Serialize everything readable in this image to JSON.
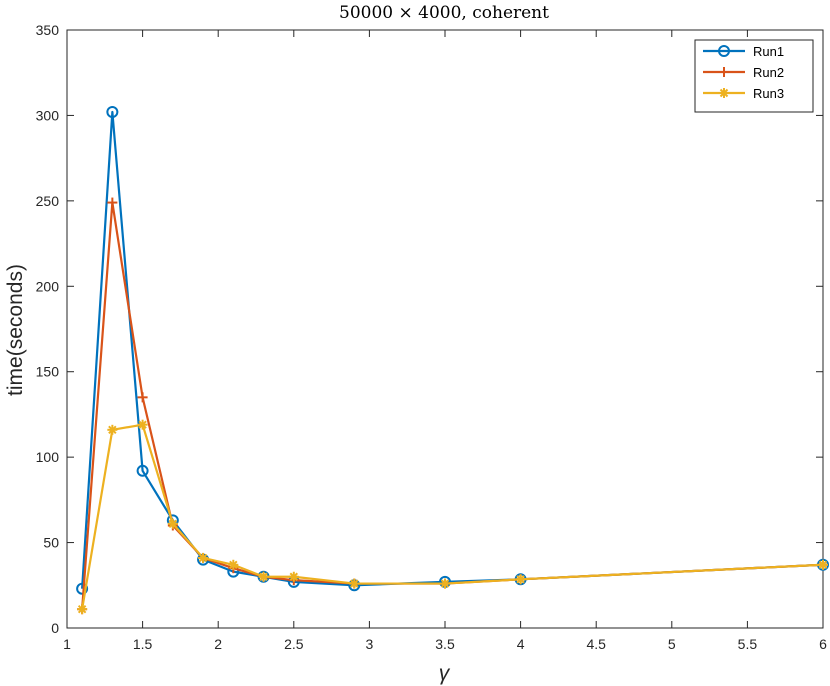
{
  "chart_data": {
    "type": "line",
    "title": "50000 × 4000, coherent",
    "xlabel": "γ",
    "ylabel": "time(seconds)",
    "xlim": [
      1,
      6
    ],
    "ylim": [
      0,
      350
    ],
    "xticks": [
      1,
      1.5,
      2,
      2.5,
      3,
      3.5,
      4,
      4.5,
      5,
      5.5,
      6
    ],
    "xtick_labels": [
      "1",
      "1.5",
      "2",
      "2.5",
      "3",
      "3.5",
      "4",
      "4.5",
      "5",
      "5.5",
      "6"
    ],
    "yticks": [
      0,
      50,
      100,
      150,
      200,
      250,
      300,
      350
    ],
    "ytick_labels": [
      "0",
      "50",
      "100",
      "150",
      "200",
      "250",
      "300",
      "350"
    ],
    "grid": false,
    "legend_position": "top-right",
    "series": [
      {
        "name": "Run1",
        "color": "#0072BD",
        "marker": "circle",
        "x": [
          1.1,
          1.3,
          1.5,
          1.7,
          1.9,
          2.1,
          2.3,
          2.5,
          2.9,
          3.5,
          4,
          6
        ],
        "y": [
          23,
          302,
          92,
          63,
          40,
          33,
          30,
          27,
          25,
          27,
          28.5,
          37
        ]
      },
      {
        "name": "Run2",
        "color": "#D95319",
        "marker": "plus",
        "x": [
          1.1,
          1.3,
          1.5,
          1.7,
          1.9,
          2.1,
          2.3,
          2.5,
          2.9,
          3.5,
          4,
          6
        ],
        "y": [
          11,
          249,
          135,
          60,
          41,
          35,
          30,
          28,
          26,
          26,
          28.5,
          37
        ]
      },
      {
        "name": "Run3",
        "color": "#EDB120",
        "marker": "asterisk",
        "x": [
          1.1,
          1.3,
          1.5,
          1.7,
          1.9,
          2.1,
          2.3,
          2.5,
          2.9,
          3.5,
          4,
          6
        ],
        "y": [
          11,
          116,
          119,
          61,
          41,
          37,
          30,
          30,
          26,
          26,
          28.5,
          37
        ]
      }
    ]
  }
}
